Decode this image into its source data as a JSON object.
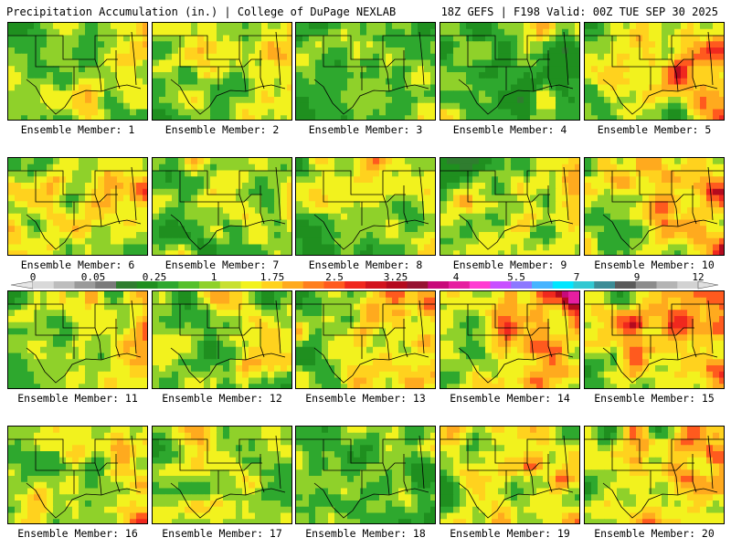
{
  "header": {
    "title": "Precipitation Accumulation (in.) | College of DuPage NEXLAB",
    "run_info": "18Z GEFS | F198 Valid: 00Z TUE SEP 30 2025"
  },
  "colorbar": {
    "labels": [
      "0",
      "0.05",
      "0.25",
      "1",
      "1.75",
      "2.5",
      "3.25",
      "4",
      "5.5",
      "7",
      "9",
      "12"
    ],
    "colors": [
      "#d9d9d9",
      "#bdbdbd",
      "#9a9a9a",
      "#7a7a7a",
      "#2f7d2f",
      "#1f8f1f",
      "#2ea82e",
      "#55c02a",
      "#8fd12a",
      "#c8e030",
      "#f2f21e",
      "#ffd21e",
      "#ffaa1e",
      "#ff7f1e",
      "#ff5a1e",
      "#f0281e",
      "#d2141e",
      "#b40a1e",
      "#961432",
      "#c80a7a",
      "#e61ea0",
      "#ff3cd2",
      "#c850ff",
      "#8c78ff",
      "#46b4ff",
      "#00e6ff",
      "#32c8d2",
      "#3c8c96",
      "#5a5a5a",
      "#8c8c8c",
      "#b4b4b4",
      "#d2d2d2"
    ]
  },
  "members": [
    {
      "label": "Ensemble Member: 1",
      "seed": 11,
      "wet": 0.45
    },
    {
      "label": "Ensemble Member: 2",
      "seed": 23,
      "wet": 0.55
    },
    {
      "label": "Ensemble Member: 3",
      "seed": 37,
      "wet": 0.3
    },
    {
      "label": "Ensemble Member: 4",
      "seed": 41,
      "wet": 0.22
    },
    {
      "label": "Ensemble Member: 5",
      "seed": 53,
      "wet": 0.7
    },
    {
      "label": "Ensemble Member: 6",
      "seed": 67,
      "wet": 0.62
    },
    {
      "label": "Ensemble Member: 7",
      "seed": 71,
      "wet": 0.4
    },
    {
      "label": "Ensemble Member: 8",
      "seed": 83,
      "wet": 0.5
    },
    {
      "label": "Ensemble Member: 9",
      "seed": 97,
      "wet": 0.42
    },
    {
      "label": "Ensemble Member: 10",
      "seed": 101,
      "wet": 0.68
    },
    {
      "label": "Ensemble Member: 11",
      "seed": 113,
      "wet": 0.5
    },
    {
      "label": "Ensemble Member: 12",
      "seed": 127,
      "wet": 0.45
    },
    {
      "label": "Ensemble Member: 13",
      "seed": 131,
      "wet": 0.55
    },
    {
      "label": "Ensemble Member: 14",
      "seed": 149,
      "wet": 0.75
    },
    {
      "label": "Ensemble Member: 15",
      "seed": 157,
      "wet": 0.78
    },
    {
      "label": "Ensemble Member: 16",
      "seed": 163,
      "wet": 0.55
    },
    {
      "label": "Ensemble Member: 17",
      "seed": 173,
      "wet": 0.45
    },
    {
      "label": "Ensemble Member: 18",
      "seed": 181,
      "wet": 0.28
    },
    {
      "label": "Ensemble Member: 19",
      "seed": 191,
      "wet": 0.6
    },
    {
      "label": "Ensemble Member: 20",
      "seed": 199,
      "wet": 0.72
    }
  ]
}
